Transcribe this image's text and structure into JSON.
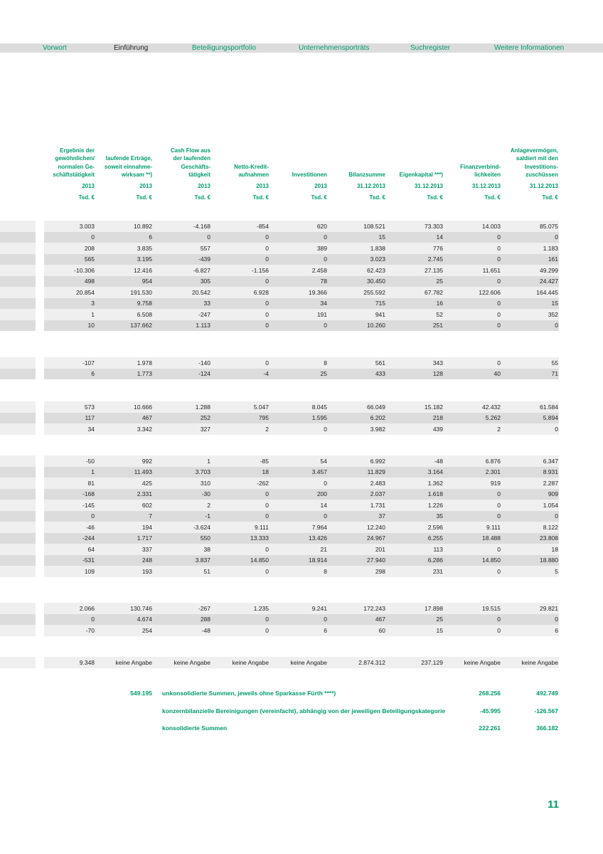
{
  "nav": [
    "Vorwort",
    "Einführung",
    "Beteiligungsportfolio",
    "Unternehmensporträts",
    "Suchregister",
    "Weitere Informationen"
  ],
  "columns": [
    {
      "label": [
        "Ergebnis der",
        "gewöhnlichen/",
        "normalen Ge-",
        "schäftstätigkeit"
      ],
      "period": "2013",
      "unit": "Tsd. €"
    },
    {
      "label": [
        "laufende Erträge,",
        "soweit einnahme-",
        "wirksam **)"
      ],
      "period": "2013",
      "unit": "Tsd. €"
    },
    {
      "label": [
        "Cash Flow aus",
        "der laufenden",
        "Geschäfts-",
        "tätigkeit"
      ],
      "period": "2013",
      "unit": "Tsd. €"
    },
    {
      "label": [
        "Netto-Kredit-",
        "aufnahmen"
      ],
      "period": "2013",
      "unit": "Tsd. €"
    },
    {
      "label": [
        "Investitionen"
      ],
      "period": "2013",
      "unit": "Tsd. €"
    },
    {
      "label": [
        "Bilanzsumme"
      ],
      "period": "31.12.2013",
      "unit": "Tsd. €"
    },
    {
      "label": [
        "Eigenkapital ***)"
      ],
      "period": "31.12.2013",
      "unit": "Tsd. €"
    },
    {
      "label": [
        "Finanzverbind-",
        "lichkeiten"
      ],
      "period": "31.12.2013",
      "unit": "Tsd. €"
    },
    {
      "label": [
        "Anlagevermögen,",
        "saldiert mit den",
        "Investitions-",
        "zuschüssen"
      ],
      "period": "31.12.2013",
      "unit": "Tsd. €"
    }
  ],
  "groups": [
    [
      [
        "3.003",
        "10.892",
        "-4.168",
        "-854",
        "620",
        "108.521",
        "73.303",
        "14.003",
        "85.075"
      ],
      [
        "0",
        "6",
        "0",
        "0",
        "0",
        "15",
        "14",
        "0",
        "0"
      ],
      [
        "208",
        "3.835",
        "557",
        "0",
        "389",
        "1.838",
        "776",
        "0",
        "1.183"
      ],
      [
        "565",
        "3.195",
        "-439",
        "0",
        "0",
        "3.023",
        "2.745",
        "0",
        "161"
      ],
      [
        "-10.306",
        "12.416",
        "-6.827",
        "-1.156",
        "2.458",
        "62.423",
        "27.135",
        "11.651",
        "49.299"
      ],
      [
        "498",
        "954",
        "305",
        "0",
        "78",
        "30.450",
        "25",
        "0",
        "24.427"
      ],
      [
        "20.854",
        "191.530",
        "20.542",
        "6.928",
        "19.366",
        "255.592",
        "67.782",
        "122.606",
        "164.445"
      ],
      [
        "3",
        "9.758",
        "33",
        "0",
        "34",
        "715",
        "16",
        "0",
        "15"
      ],
      [
        "1",
        "6.508",
        "-247",
        "0",
        "191",
        "941",
        "52",
        "0",
        "352"
      ],
      [
        "10",
        "137.662",
        "1.113",
        "0",
        "0",
        "10.260",
        "251",
        "0",
        "0"
      ]
    ],
    [
      [
        "-107",
        "1.978",
        "-140",
        "0",
        "8",
        "561",
        "343",
        "0",
        "55"
      ],
      [
        "6",
        "1.773",
        "-124",
        "-4",
        "25",
        "433",
        "128",
        "40",
        "71"
      ]
    ],
    [
      [
        "573",
        "10.666",
        "1.288",
        "5.047",
        "8.045",
        "66.049",
        "15.182",
        "42.432",
        "61.584"
      ],
      [
        "117",
        "467",
        "252",
        "795",
        "1.595",
        "6.202",
        "218",
        "5.262",
        "5.894"
      ],
      [
        "34",
        "3.342",
        "327",
        "2",
        "0",
        "3.982",
        "439",
        "2",
        "0"
      ]
    ],
    [
      [
        "-50",
        "992",
        "1",
        "-85",
        "54",
        "6.992",
        "-48",
        "6.876",
        "6.347"
      ],
      [
        "1",
        "11.493",
        "3.703",
        "18",
        "3.457",
        "11.829",
        "3.164",
        "2.301",
        "8.931"
      ],
      [
        "81",
        "425",
        "310",
        "-262",
        "0",
        "2.483",
        "1.362",
        "919",
        "2.287"
      ],
      [
        "-168",
        "2.331",
        "-30",
        "0",
        "200",
        "2.037",
        "1.618",
        "0",
        "909"
      ],
      [
        "-145",
        "602",
        "2",
        "0",
        "14",
        "1.731",
        "1.226",
        "0",
        "1.054"
      ],
      [
        "0",
        "7",
        "-1",
        "0",
        "0",
        "37",
        "35",
        "0",
        "0"
      ],
      [
        "-46",
        "194",
        "-3.624",
        "9.111",
        "7.964",
        "12.240",
        "2.596",
        "9.111",
        "8.122"
      ],
      [
        "-244",
        "1.717",
        "550",
        "13.333",
        "13.426",
        "24.967",
        "6.255",
        "18.488",
        "23.808"
      ],
      [
        "64",
        "337",
        "38",
        "0",
        "21",
        "201",
        "113",
        "0",
        "18"
      ],
      [
        "-531",
        "248",
        "3.837",
        "14.850",
        "18.914",
        "27.940",
        "6.286",
        "14.850",
        "18.880"
      ],
      [
        "109",
        "193",
        "51",
        "0",
        "8",
        "298",
        "231",
        "0",
        "5"
      ]
    ],
    [
      [
        "2.066",
        "130.746",
        "-267",
        "1.235",
        "9.241",
        "172.243",
        "17.898",
        "19.515",
        "29.821"
      ],
      [
        "0",
        "4.674",
        "288",
        "0",
        "0",
        "467",
        "25",
        "0",
        "0"
      ],
      [
        "-70",
        "254",
        "-48",
        "0",
        "6",
        "60",
        "15",
        "0",
        "6"
      ]
    ],
    [
      [
        "9.348",
        "keine Angabe",
        "keine Angabe",
        "keine Angabe",
        "keine Angabe",
        "2.874.312",
        "237.129",
        "keine Angabe",
        "keine Angabe"
      ]
    ]
  ],
  "totals": [
    {
      "value": "549.195",
      "label": "unkonsolidierte Summen, jeweils ohne Sparkasse Fürth ****)",
      "liabilities": "268.256",
      "assets": "492.749"
    },
    {
      "label": "konzernbilanzielle Bereinigungen (vereinfacht), abhängig von der jeweiligen Beteiligungskategorie",
      "liabilities": "-45.995",
      "assets": "-126.567"
    },
    {
      "label": "konsolidierte Summen",
      "liabilities": "222.261",
      "assets": "366.182"
    }
  ],
  "page_number": "11"
}
